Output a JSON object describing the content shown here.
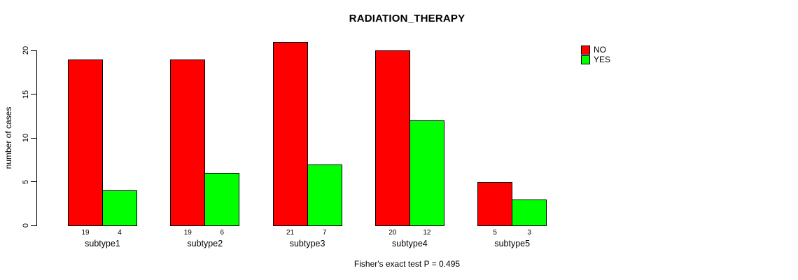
{
  "colors": {
    "no_bar": "#ff0000",
    "yes_bar": "#00ff00",
    "axis": "#000000",
    "background": "#ffffff",
    "text": "#000000"
  },
  "chart_data": {
    "type": "bar",
    "title": "RADIATION_THERAPY",
    "xlabel": "",
    "ylabel": "number of cases",
    "categories": [
      "subtype1",
      "subtype2",
      "subtype3",
      "subtype4",
      "subtype5"
    ],
    "series": [
      {
        "name": "NO",
        "color": "#ff0000",
        "values": [
          19,
          19,
          21,
          20,
          5
        ]
      },
      {
        "name": "YES",
        "color": "#00ff00",
        "values": [
          4,
          6,
          7,
          12,
          3
        ]
      }
    ],
    "bar_count_labels": {
      "NO": [
        "19",
        "19",
        "21",
        "20",
        "5"
      ],
      "YES": [
        "4",
        "6",
        "7",
        "12",
        "3"
      ]
    },
    "yticks": [
      "0",
      "5",
      "10",
      "15",
      "20"
    ],
    "ytick_values": [
      0,
      5,
      10,
      15,
      20
    ],
    "ylim": [
      0,
      21
    ],
    "grid": false,
    "legend_position": "top-right",
    "legend_entries": [
      "NO",
      "YES"
    ],
    "annotation": "Fisher's exact test P = 0.495"
  }
}
